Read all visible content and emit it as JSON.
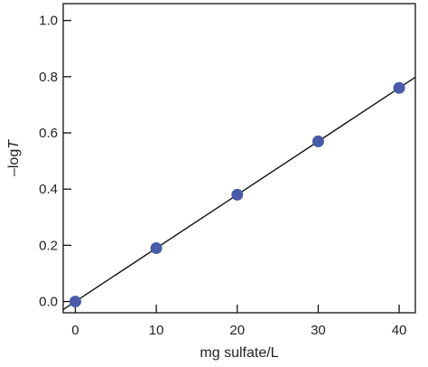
{
  "chart_data": {
    "type": "scatter",
    "xlabel": "mg sulfate/L",
    "ylabel_prefix": "–log",
    "ylabel_var": "T",
    "xlim": [
      -1.5,
      42
    ],
    "ylim": [
      -0.04,
      1.06
    ],
    "x_ticks": [
      {
        "value": 0,
        "label": "0"
      },
      {
        "value": 10,
        "label": "10"
      },
      {
        "value": 20,
        "label": "20"
      },
      {
        "value": 30,
        "label": "30"
      },
      {
        "value": 40,
        "label": "40"
      }
    ],
    "y_ticks": [
      {
        "value": 0.0,
        "label": "0.0"
      },
      {
        "value": 0.2,
        "label": "0.2"
      },
      {
        "value": 0.4,
        "label": "0.4"
      },
      {
        "value": 0.6,
        "label": "0.6"
      },
      {
        "value": 0.8,
        "label": "0.8"
      },
      {
        "value": 1.0,
        "label": "1.0"
      }
    ],
    "points": [
      {
        "x": 0,
        "y": 0.0
      },
      {
        "x": 10,
        "y": 0.19
      },
      {
        "x": 20,
        "y": 0.38
      },
      {
        "x": 30,
        "y": 0.57
      },
      {
        "x": 40,
        "y": 0.76
      }
    ],
    "fit_line": {
      "x_start": -1.5,
      "x_end": 42,
      "slope": 0.019,
      "intercept": 0.0
    },
    "marker_color": "#4a5aa8",
    "line_color": "#111111",
    "axis_color": "#111111",
    "grid": false
  }
}
